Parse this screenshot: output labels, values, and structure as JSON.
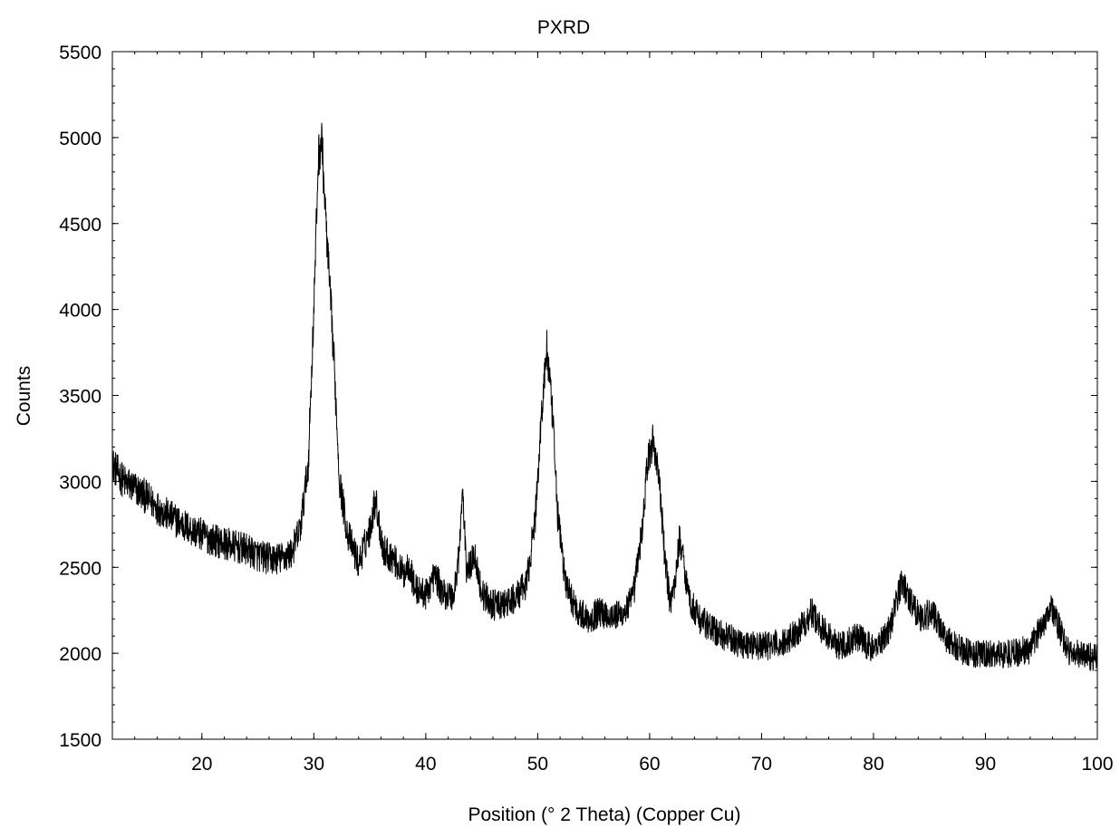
{
  "chart_data": {
    "type": "line",
    "title": "PXRD",
    "xlabel": "Position (° 2 Theta) (Copper Cu)",
    "ylabel": "Counts",
    "xlim": [
      12,
      100
    ],
    "ylim": [
      1500,
      5500
    ],
    "xticks": [
      20,
      30,
      40,
      50,
      60,
      70,
      80,
      90,
      100
    ],
    "yticks": [
      1500,
      2000,
      2500,
      3000,
      3500,
      4000,
      4500,
      5000,
      5500
    ],
    "grid": false,
    "legend": "none",
    "line_color": "#000000",
    "series": [
      {
        "x": [
          12,
          13,
          14,
          15,
          16,
          17,
          18,
          19,
          20,
          21,
          22,
          23,
          24,
          25,
          26,
          27,
          28,
          28.8,
          29.5,
          30.0,
          30.4,
          30.7,
          31.0,
          31.4,
          31.8,
          32.3,
          33.0,
          34.0,
          35.0,
          35.5,
          36.2,
          37.0,
          38.0,
          38.5,
          39.0,
          40.0,
          40.8,
          41.5,
          42.5,
          43.0,
          43.3,
          43.6,
          44.0,
          44.3,
          45.0,
          46.0,
          47.0,
          48.0,
          49.0,
          49.8,
          50.3,
          50.8,
          51.3,
          51.8,
          52.5,
          53.5,
          54.5,
          55.5,
          56.5,
          57.5,
          58.5,
          59.3,
          59.8,
          60.3,
          60.8,
          61.3,
          61.8,
          62.2,
          62.7,
          63.1,
          63.6,
          64.5,
          66,
          68,
          70,
          72,
          73.5,
          74.5,
          75.5,
          77,
          78.5,
          80,
          81.5,
          82.5,
          83.5,
          84.3,
          85.2,
          86.5,
          88,
          90,
          92,
          94,
          95.3,
          95.8,
          96.5,
          97.5,
          99,
          100
        ],
        "y": [
          3100,
          3000,
          2960,
          2910,
          2850,
          2800,
          2760,
          2720,
          2690,
          2660,
          2640,
          2620,
          2600,
          2570,
          2550,
          2550,
          2580,
          2730,
          3100,
          4000,
          4880,
          5000,
          4600,
          4150,
          3700,
          3000,
          2700,
          2520,
          2720,
          2900,
          2600,
          2560,
          2460,
          2520,
          2380,
          2340,
          2460,
          2350,
          2330,
          2600,
          2960,
          2500,
          2500,
          2600,
          2350,
          2280,
          2280,
          2320,
          2400,
          2800,
          3350,
          3780,
          3400,
          2800,
          2400,
          2250,
          2200,
          2240,
          2220,
          2220,
          2320,
          2700,
          3100,
          3240,
          3050,
          2600,
          2300,
          2380,
          2680,
          2500,
          2300,
          2200,
          2120,
          2060,
          2040,
          2060,
          2150,
          2240,
          2130,
          2040,
          2100,
          2020,
          2150,
          2420,
          2280,
          2200,
          2240,
          2090,
          2010,
          1990,
          2000,
          2020,
          2200,
          2280,
          2160,
          2000,
          1990,
          1970
        ]
      }
    ]
  }
}
